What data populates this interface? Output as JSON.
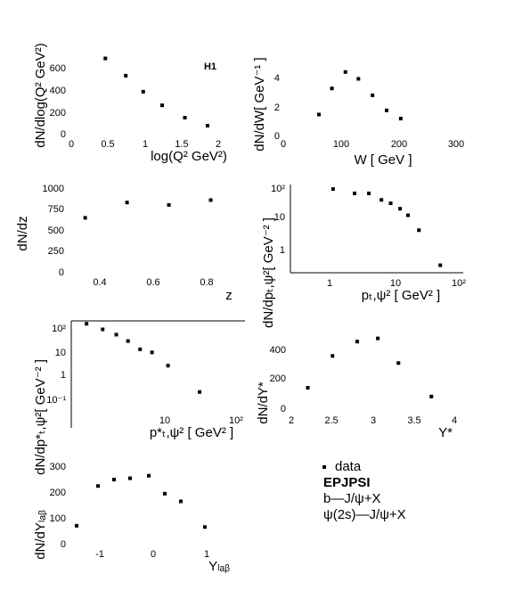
{
  "panels_tag": "H1",
  "legend": {
    "items": [
      {
        "label": "data",
        "bold": false,
        "marker": true
      },
      {
        "label": "EPJPSI",
        "bold": true,
        "marker": false
      },
      {
        "label": "b—J/ψ+X",
        "bold": false,
        "marker": false
      },
      {
        "label": "ψ(2s)—J/ψ+X",
        "bold": false,
        "marker": false
      }
    ]
  },
  "chart_data": [
    {
      "id": "q2",
      "type": "scatter",
      "xlabel": "log(Q² GeV²)",
      "ylabel": "dN/dlog(Q² GeV²)",
      "annotation": "H1",
      "xlim": [
        0,
        2
      ],
      "ylim": [
        0,
        650
      ],
      "xticks": [
        "0",
        "0.5",
        "1",
        "1.5",
        "2"
      ],
      "yticks": [
        "0",
        "200",
        "400",
        "600"
      ],
      "x": [
        0.45,
        0.72,
        0.95,
        1.2,
        1.5,
        1.8
      ],
      "y": [
        610,
        470,
        340,
        230,
        130,
        65
      ]
    },
    {
      "id": "w",
      "type": "scatter",
      "xlabel": "W [ GeV ]",
      "ylabel": "dN/dW[ GeV⁻¹ ]",
      "xlim": [
        0,
        300
      ],
      "ylim": [
        0,
        5.2
      ],
      "xticks": [
        "0",
        "100",
        "200",
        "300"
      ],
      "yticks": [
        "0",
        "2",
        "4"
      ],
      "x": [
        60,
        83,
        107,
        130,
        155,
        180,
        205
      ],
      "y": [
        1.4,
        3.3,
        4.5,
        4.0,
        2.8,
        1.7,
        1.1
      ]
    },
    {
      "id": "z",
      "type": "scatter",
      "xlabel": "z",
      "ylabel": "dN/dz",
      "xlim": [
        0.3,
        0.92
      ],
      "ylim": [
        0,
        1050
      ],
      "xticks": [
        "0.4",
        "0.6",
        "0.8"
      ],
      "yticks": [
        "0",
        "250",
        "500",
        "750",
        "1000"
      ],
      "x": [
        0.36,
        0.52,
        0.68,
        0.84
      ],
      "y": [
        670,
        860,
        830,
        890
      ]
    },
    {
      "id": "pt2",
      "type": "scatter",
      "log_x": true,
      "log_y": true,
      "xlabel": "pₜ,ψ² [ GeV² ]",
      "ylabel": "dN/dpₜ,ψ²[ GeV⁻² ]",
      "xlim": [
        0.1,
        100
      ],
      "ylim": [
        0.1,
        100
      ],
      "xticks": [
        "1",
        "10",
        "10²"
      ],
      "yticks": [
        "1",
        "10",
        "10²"
      ],
      "x": [
        0.55,
        1.3,
        2.3,
        3.8,
        5.5,
        8,
        11,
        17,
        40
      ],
      "y": [
        70,
        50,
        50,
        30,
        23,
        15,
        9,
        2.8,
        0.18
      ]
    },
    {
      "id": "ptstar2",
      "type": "scatter",
      "log_x": true,
      "log_y": true,
      "xlabel": "p*ₜ,ψ² [ GeV² ]",
      "ylabel": "dN/dp*ₜ,ψ²[ GeV⁻² ]",
      "xlim": [
        1,
        100
      ],
      "ylim": [
        0.01,
        150
      ],
      "xticks": [
        "10",
        "10²"
      ],
      "yticks": [
        "10⁻¹",
        "1",
        "10",
        "10²"
      ],
      "x": [
        1.5,
        2.3,
        3.3,
        4.5,
        6.2,
        8.5,
        13,
        30
      ],
      "y": [
        110,
        60,
        34,
        17,
        7,
        5,
        1.2,
        0.07
      ]
    },
    {
      "id": "ystar",
      "type": "scatter",
      "xlabel": "Y*",
      "ylabel": "dN/dY*",
      "xlim": [
        2,
        4
      ],
      "ylim": [
        0,
        560
      ],
      "xticks": [
        "2",
        "2.5",
        "3",
        "3.5",
        "4"
      ],
      "yticks": [
        "0",
        "200",
        "400"
      ],
      "x": [
        2.2,
        2.5,
        2.8,
        3.05,
        3.3,
        3.7
      ],
      "y": [
        140,
        340,
        430,
        450,
        295,
        85
      ]
    },
    {
      "id": "ylab",
      "type": "scatter",
      "xlabel": "Yₗₐᵦ",
      "ylabel": "dN/dYₗₐᵦ",
      "xlim": [
        -1.4,
        1.6
      ],
      "ylim": [
        0,
        330
      ],
      "xticks": [
        "-1",
        "0",
        "1"
      ],
      "yticks": [
        "0",
        "100",
        "200",
        "300"
      ],
      "x": [
        -1.3,
        -0.9,
        -0.6,
        -0.3,
        0.05,
        0.35,
        0.65,
        1.1
      ],
      "y": [
        70,
        225,
        250,
        255,
        265,
        195,
        165,
        65
      ]
    }
  ]
}
